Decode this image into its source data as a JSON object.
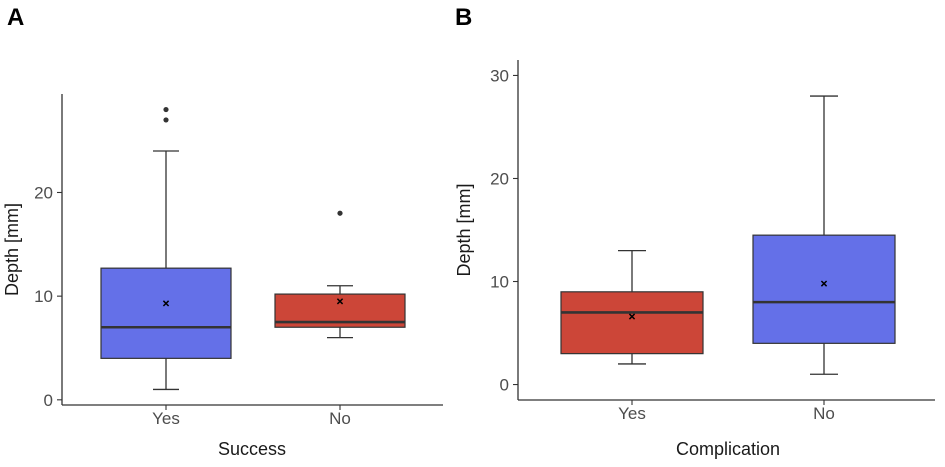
{
  "colors": {
    "blue": "#6470E8",
    "red": "#CC4638",
    "line": "#333333"
  },
  "chart_data": [
    {
      "panel_label": "A",
      "type": "box",
      "xlabel": "Success",
      "ylabel": "Depth [mm]",
      "ylim": [
        -0.5,
        29.5
      ],
      "yticks": [
        0,
        10,
        20
      ],
      "ytick_labels": [
        "0",
        "10",
        "20"
      ],
      "categories": [
        "Yes",
        "No"
      ],
      "boxes": [
        {
          "category": "Yes",
          "color": "#6470E8",
          "whisker_low": 1,
          "q1": 4,
          "median": 7,
          "q3": 12.7,
          "whisker_high": 24,
          "mean": 9.3,
          "mean_marker": "×",
          "outliers": [
            27,
            28
          ]
        },
        {
          "category": "No",
          "color": "#CC4638",
          "whisker_low": 6,
          "q1": 7,
          "median": 7.5,
          "q3": 10.2,
          "whisker_high": 11,
          "mean": 9.5,
          "mean_marker": "×",
          "outliers": [
            18
          ]
        }
      ]
    },
    {
      "panel_label": "B",
      "type": "box",
      "xlabel": "Complication",
      "ylabel": "Depth [mm]",
      "ylim": [
        -1.5,
        31.5
      ],
      "yticks": [
        0,
        10,
        20,
        30
      ],
      "ytick_labels": [
        "0",
        "10",
        "20",
        "30"
      ],
      "categories": [
        "Yes",
        "No"
      ],
      "boxes": [
        {
          "category": "Yes",
          "color": "#CC4638",
          "whisker_low": 2,
          "q1": 3,
          "median": 7,
          "q3": 9,
          "whisker_high": 13,
          "mean": 6.6,
          "mean_marker": "×",
          "outliers": []
        },
        {
          "category": "No",
          "color": "#6470E8",
          "whisker_low": 1,
          "q1": 4,
          "median": 8,
          "q3": 14.5,
          "whisker_high": 28,
          "mean": 9.8,
          "mean_marker": "×",
          "outliers": []
        }
      ]
    }
  ]
}
